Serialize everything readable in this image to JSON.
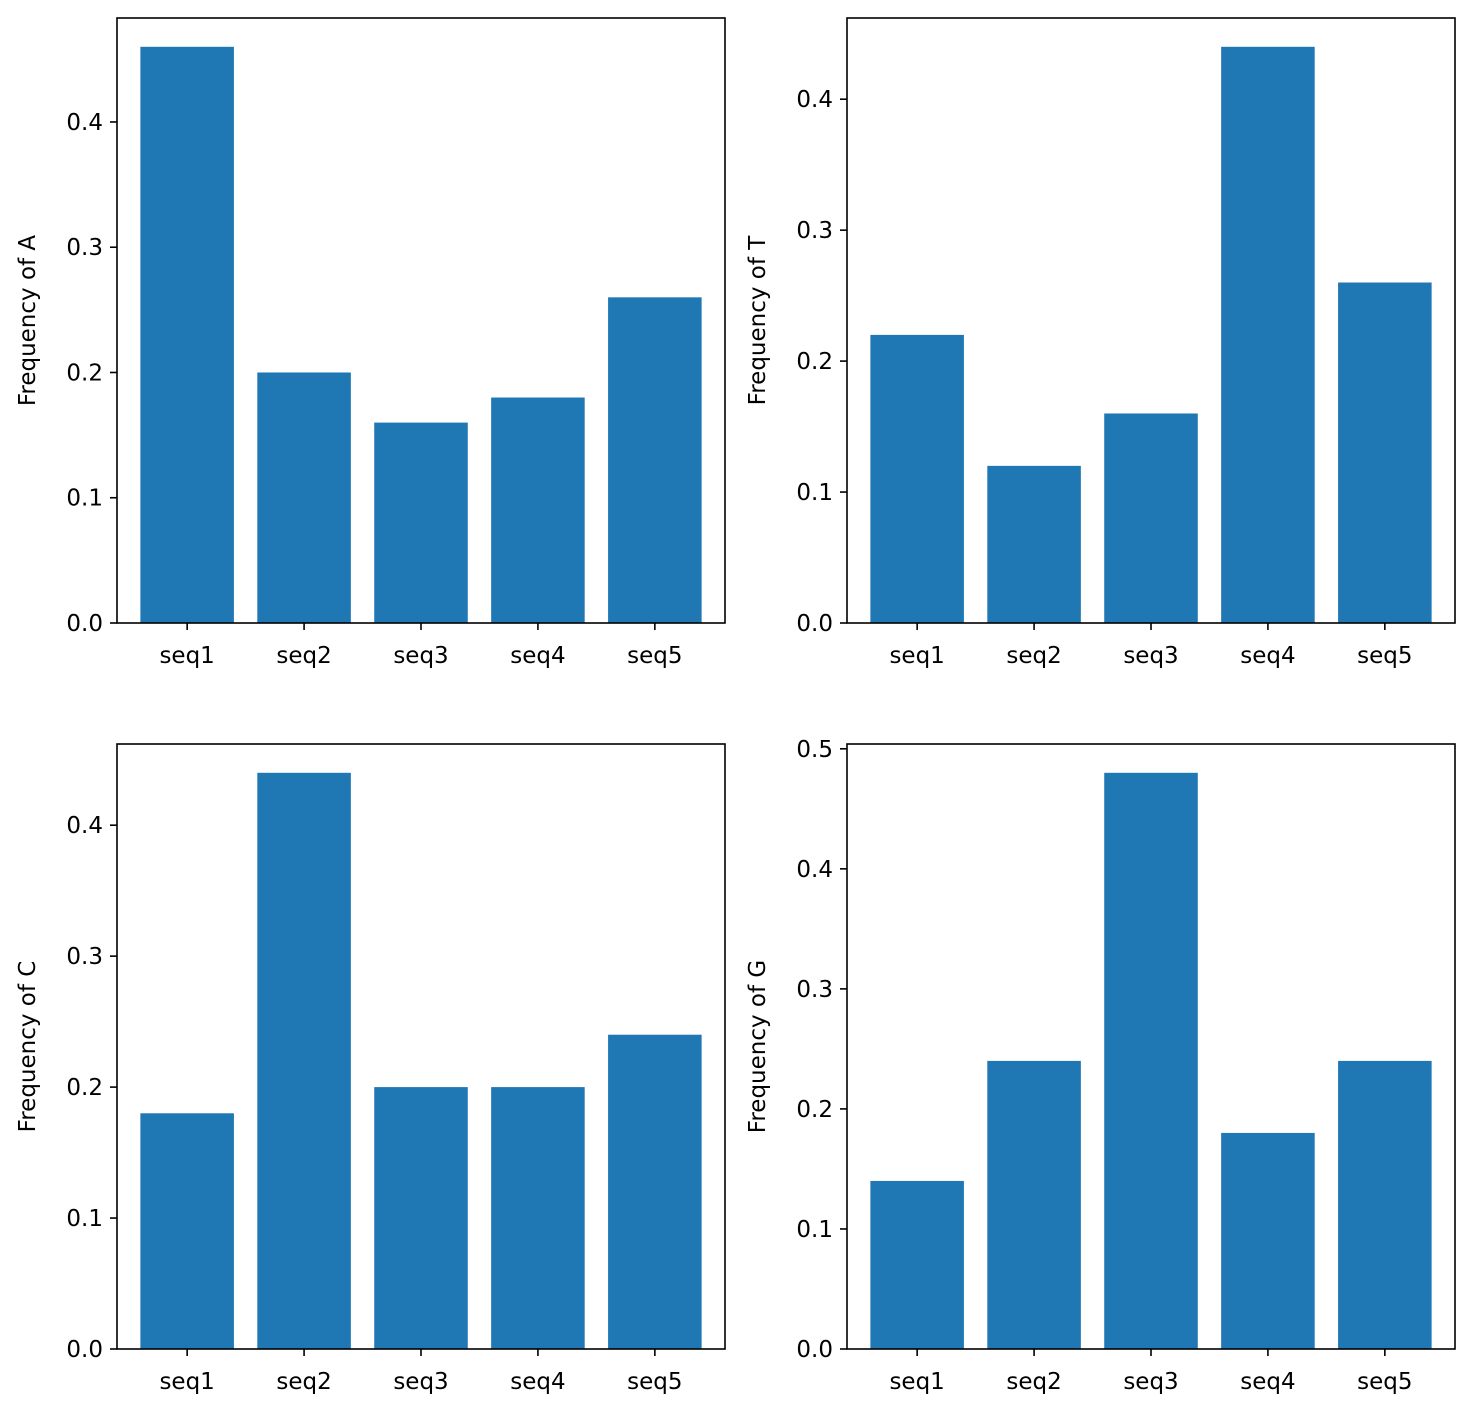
{
  "colors": {
    "bar": "#1f77b4",
    "axes": "#000000",
    "background": "#ffffff"
  },
  "chart_data": [
    {
      "type": "bar",
      "categories": [
        "seq1",
        "seq2",
        "seq3",
        "seq4",
        "seq5"
      ],
      "values": [
        0.46,
        0.2,
        0.16,
        0.18,
        0.26
      ],
      "ylabel": "Frequency of A",
      "xlabel": "",
      "ylim": [
        0,
        0.483
      ],
      "yticks": [
        0.0,
        0.1,
        0.2,
        0.3,
        0.4
      ],
      "ytick_labels": [
        "0.0",
        "0.1",
        "0.2",
        "0.3",
        "0.4"
      ],
      "grid": false
    },
    {
      "type": "bar",
      "categories": [
        "seq1",
        "seq2",
        "seq3",
        "seq4",
        "seq5"
      ],
      "values": [
        0.22,
        0.12,
        0.16,
        0.44,
        0.26
      ],
      "ylabel": "Frequency of T",
      "xlabel": "",
      "ylim": [
        0,
        0.462
      ],
      "yticks": [
        0.0,
        0.1,
        0.2,
        0.3,
        0.4
      ],
      "ytick_labels": [
        "0.0",
        "0.1",
        "0.2",
        "0.3",
        "0.4"
      ],
      "grid": false
    },
    {
      "type": "bar",
      "categories": [
        "seq1",
        "seq2",
        "seq3",
        "seq4",
        "seq5"
      ],
      "values": [
        0.18,
        0.44,
        0.2,
        0.2,
        0.24
      ],
      "ylabel": "Frequency of C",
      "xlabel": "",
      "ylim": [
        0,
        0.462
      ],
      "yticks": [
        0.0,
        0.1,
        0.2,
        0.3,
        0.4
      ],
      "ytick_labels": [
        "0.0",
        "0.1",
        "0.2",
        "0.3",
        "0.4"
      ],
      "grid": false
    },
    {
      "type": "bar",
      "categories": [
        "seq1",
        "seq2",
        "seq3",
        "seq4",
        "seq5"
      ],
      "values": [
        0.14,
        0.24,
        0.48,
        0.18,
        0.24
      ],
      "ylabel": "Frequency of G",
      "xlabel": "",
      "ylim": [
        0,
        0.504
      ],
      "yticks": [
        0.0,
        0.1,
        0.2,
        0.3,
        0.4,
        0.5
      ],
      "ytick_labels": [
        "0.0",
        "0.1",
        "0.2",
        "0.3",
        "0.4",
        "0.5"
      ],
      "grid": false
    }
  ]
}
